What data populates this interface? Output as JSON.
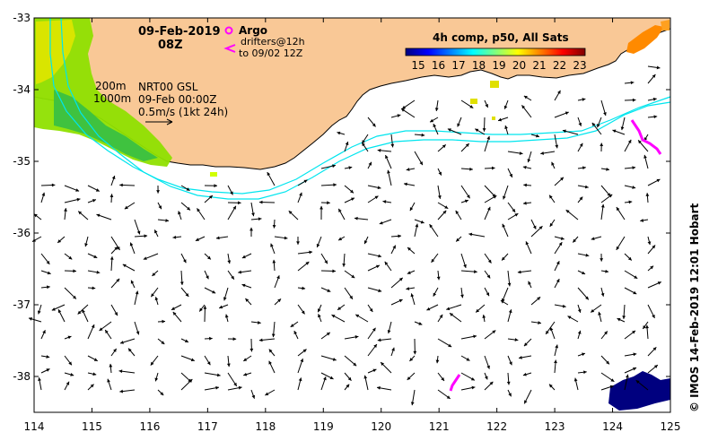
{
  "map": {
    "date": "09-Feb-2019",
    "time": "08Z",
    "product": {
      "line1": "NRT00 GSL",
      "line2": "09-Feb 00:00Z",
      "line3": "0.5m/s (1kt 24h)"
    },
    "isobaths": {
      "shallow": "200m",
      "deep": "1000m"
    },
    "legend": {
      "argo_label": "Argo",
      "drifters_line1": "drifters@12h",
      "drifters_line2": "to 09/02 12Z",
      "argo_color": "#ff00ff",
      "drifter_color": "#ff00ff"
    },
    "colorbar": {
      "title": "4h comp, p50, All Sats",
      "ticks": [
        "15",
        "16",
        "17",
        "18",
        "19",
        "20",
        "21",
        "22",
        "23"
      ],
      "colors": [
        "#00007f",
        "#0000ff",
        "#007fff",
        "#00ffff",
        "#7fff7f",
        "#ffff00",
        "#ff7f00",
        "#ff0000",
        "#7f0000"
      ]
    },
    "x_axis": {
      "ticks": [
        "114",
        "115",
        "116",
        "117",
        "118",
        "119",
        "120",
        "121",
        "122",
        "123",
        "124",
        "125"
      ],
      "range": [
        114,
        125
      ]
    },
    "y_axis": {
      "ticks": [
        "-33",
        "-34",
        "-35",
        "-36",
        "-37",
        "-38"
      ],
      "range": [
        -38.5,
        -33
      ]
    },
    "credit": "© IMOS 14-Feb-2019 12:01 Hobart",
    "colors": {
      "land": "#f9c896",
      "isobath": "#00e5ee",
      "ocean": "#ffffff"
    }
  }
}
